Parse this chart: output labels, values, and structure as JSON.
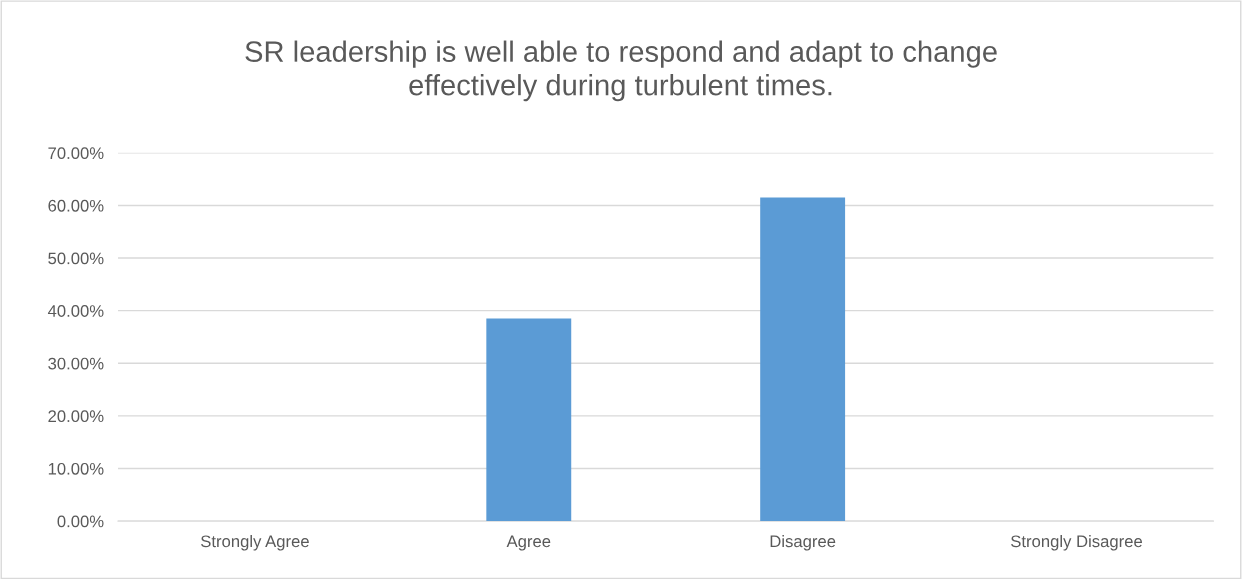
{
  "chart_data": {
    "type": "bar",
    "title": "SR leadership is well able to respond and adapt to change\neffectively during turbulent times.",
    "categories": [
      "Strongly Agree",
      "Agree",
      "Disagree",
      "Strongly Disagree"
    ],
    "values": [
      0,
      38.5,
      61.5,
      0
    ],
    "color": "#5b9bd5",
    "ylim": [
      0,
      70
    ],
    "yticks": [
      {
        "value": 0,
        "label": "0.00%"
      },
      {
        "value": 10,
        "label": "10.00%"
      },
      {
        "value": 20,
        "label": "20.00%"
      },
      {
        "value": 30,
        "label": "30.00%"
      },
      {
        "value": 40,
        "label": "40.00%"
      },
      {
        "value": 50,
        "label": "50.00%"
      },
      {
        "value": 60,
        "label": "60.00%"
      },
      {
        "value": 70,
        "label": "70.00%"
      }
    ],
    "grid": "y"
  }
}
